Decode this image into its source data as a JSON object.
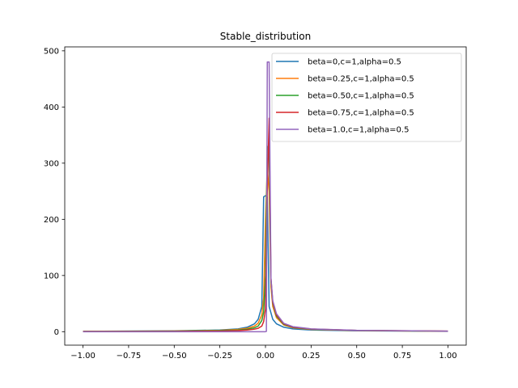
{
  "chart_data": {
    "type": "line",
    "title": "Stable_distribution",
    "xlabel": "",
    "ylabel": "",
    "xlim": [
      -1.1,
      1.1
    ],
    "ylim": [
      -24,
      507
    ],
    "xticks": [
      -1.0,
      -0.75,
      -0.5,
      -0.25,
      0.0,
      0.25,
      0.5,
      0.75,
      1.0
    ],
    "xtick_labels": [
      "−1.00",
      "−0.75",
      "−0.50",
      "−0.25",
      "0.00",
      "0.25",
      "0.50",
      "0.75",
      "1.00"
    ],
    "yticks": [
      0,
      100,
      200,
      300,
      400,
      500
    ],
    "ytick_labels": [
      "0",
      "100",
      "200",
      "300",
      "400",
      "500"
    ],
    "grid": false,
    "legend_position": "top-right",
    "series": [
      {
        "name": "beta=0,c=1,alpha=0.5",
        "color": "#1f77b4",
        "x": [
          -1.0,
          -0.5,
          -0.25,
          -0.15,
          -0.1,
          -0.06,
          -0.04,
          -0.02,
          -0.01,
          0.0,
          0.01,
          0.02,
          0.04,
          0.06,
          0.1,
          0.15,
          0.25,
          0.5,
          1.0
        ],
        "y": [
          0.7,
          1.5,
          3,
          5,
          8,
          14,
          22,
          45,
          240,
          242,
          240,
          45,
          22,
          14,
          8,
          5,
          3,
          1.5,
          0.7
        ]
      },
      {
        "name": "beta=0.25,c=1,alpha=0.5",
        "color": "#ff7f0e",
        "x": [
          -1.0,
          -0.5,
          -0.25,
          -0.15,
          -0.1,
          -0.06,
          -0.04,
          -0.02,
          -0.01,
          0.0,
          0.01,
          0.02,
          0.03,
          0.04,
          0.06,
          0.1,
          0.15,
          0.25,
          0.5,
          1.0
        ],
        "y": [
          0.6,
          1.2,
          2.5,
          4,
          6,
          10,
          15,
          30,
          60,
          200,
          290,
          250,
          80,
          45,
          25,
          12,
          7,
          4,
          2,
          0.8
        ]
      },
      {
        "name": "beta=0.50,c=1,alpha=0.5",
        "color": "#2ca02c",
        "x": [
          -1.0,
          -0.5,
          -0.25,
          -0.15,
          -0.1,
          -0.06,
          -0.04,
          -0.02,
          -0.01,
          0.0,
          0.01,
          0.02,
          0.03,
          0.04,
          0.06,
          0.1,
          0.15,
          0.25,
          0.5,
          1.0
        ],
        "y": [
          0.4,
          0.9,
          2,
          3,
          4.5,
          7,
          10,
          20,
          35,
          100,
          330,
          320,
          90,
          50,
          28,
          13,
          7.5,
          4.5,
          2.2,
          0.9
        ]
      },
      {
        "name": "beta=0.75,c=1,alpha=0.5",
        "color": "#d62728",
        "x": [
          -1.0,
          -0.5,
          -0.25,
          -0.15,
          -0.1,
          -0.06,
          -0.04,
          -0.02,
          -0.01,
          0.0,
          0.01,
          0.02,
          0.03,
          0.04,
          0.06,
          0.1,
          0.15,
          0.25,
          0.5,
          1.0
        ],
        "y": [
          0.2,
          0.5,
          1.2,
          2,
          3,
          4.5,
          6,
          10,
          18,
          40,
          250,
          380,
          95,
          52,
          30,
          14,
          8,
          4.8,
          2.3,
          1
        ]
      },
      {
        "name": "beta=1.0,c=1,alpha=0.5",
        "color": "#9467bd",
        "x": [
          -1.0,
          -0.5,
          -0.25,
          -0.15,
          -0.1,
          -0.06,
          -0.04,
          -0.02,
          0.0,
          0.005,
          0.01,
          0.02,
          0.03,
          0.04,
          0.06,
          0.1,
          0.15,
          0.25,
          0.5,
          1.0
        ],
        "y": [
          0,
          0,
          0,
          0,
          0,
          0,
          0,
          0,
          0,
          0.5,
          480,
          480,
          95,
          55,
          32,
          15,
          9,
          5,
          2.4,
          1
        ]
      }
    ]
  }
}
